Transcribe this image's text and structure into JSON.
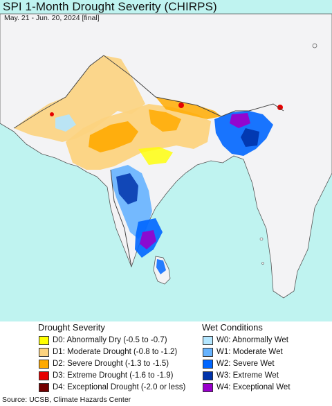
{
  "header": {
    "title": "SPI 1-Month Drought Severity (CHIRPS)",
    "subtitle": "May. 21 - Jun. 20, 2024 [final]"
  },
  "colors": {
    "water": "#bff3f0",
    "land": "#f3f3f5",
    "border": "#555555"
  },
  "legend": {
    "drought": {
      "heading": "Drought Severity",
      "items": [
        {
          "label": "D0: Abnormally Dry (-0.5 to -0.7)",
          "color": "#ffff00"
        },
        {
          "label": "D1: Moderate Drought (-0.8 to -1.2)",
          "color": "#fcd37f"
        },
        {
          "label": "D2: Severe Drought (-1.3 to -1.5)",
          "color": "#ffaa00"
        },
        {
          "label": "D3: Extreme Drought (-1.6 to -1.9)",
          "color": "#e60000"
        },
        {
          "label": "D4: Exceptional Drought (-2.0 or less)",
          "color": "#730000"
        }
      ]
    },
    "wet": {
      "heading": "Wet Conditions",
      "items": [
        {
          "label": "W0: Abnormally Wet",
          "color": "#b3e6ff"
        },
        {
          "label": "W1: Moderate Wet",
          "color": "#66b3ff"
        },
        {
          "label": "W2: Severe Wet",
          "color": "#0066ff"
        },
        {
          "label": "W3: Extreme Wet",
          "color": "#0033aa"
        },
        {
          "label": "W4: Exceptional Wet",
          "color": "#9900cc"
        }
      ]
    }
  },
  "footer": {
    "source": "Source: UCSB, Climate Hazards Center"
  }
}
